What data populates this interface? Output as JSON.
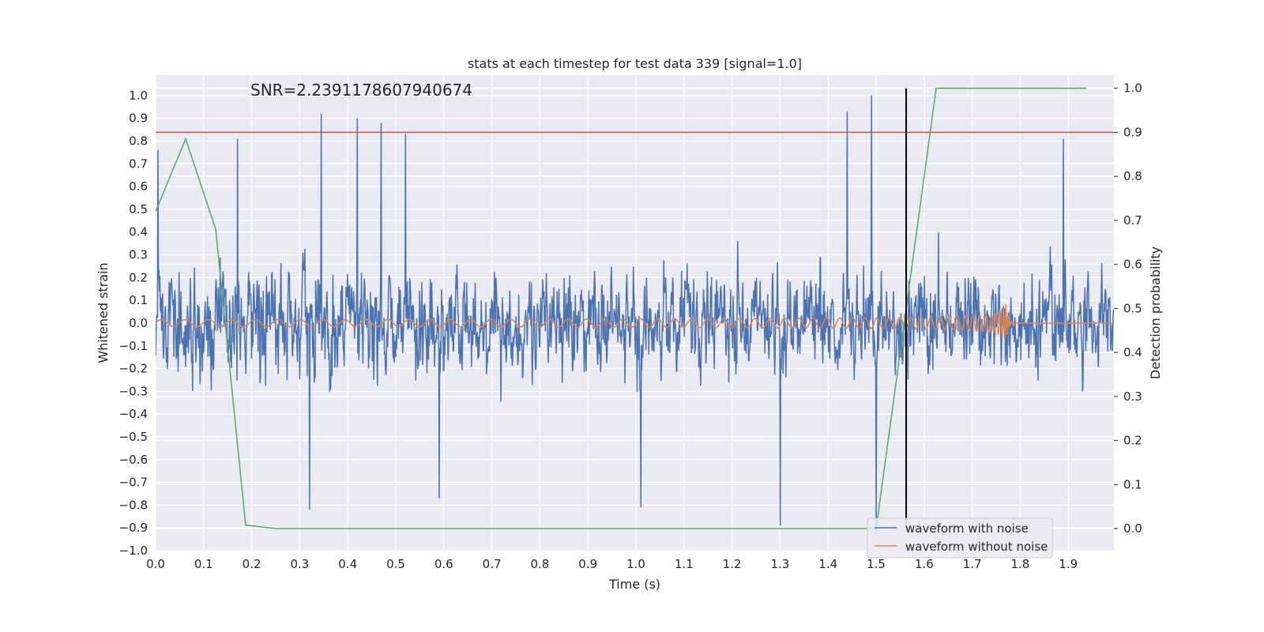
{
  "chart_data": {
    "type": "line",
    "title": "stats at each timestep for test data 339 [signal=1.0]",
    "xlabel": "Time (s)",
    "ylabel": "Whitened strain",
    "ylabel_right": "Detection probability",
    "annotation": "SNR=2.2391178607940674",
    "xlim": [
      0.0,
      1.995
    ],
    "ylim": [
      -1.0,
      1.09
    ],
    "ylim_right": [
      -0.05,
      1.03
    ],
    "x_ticks": [
      "0.0",
      "0.1",
      "0.2",
      "0.3",
      "0.4",
      "0.5",
      "0.6",
      "0.7",
      "0.8",
      "0.9",
      "1.0",
      "1.1",
      "1.2",
      "1.3",
      "1.4",
      "1.5",
      "1.6",
      "1.7",
      "1.8",
      "1.9"
    ],
    "y_ticks": [
      "1.0",
      "0.9",
      "0.8",
      "0.7",
      "0.6",
      "0.5",
      "0.4",
      "0.3",
      "0.2",
      "0.1",
      "0.0",
      "−0.1",
      "−0.2",
      "−0.3",
      "−0.4",
      "−0.5",
      "−0.6",
      "−0.7",
      "−0.8",
      "−0.9",
      "−1.0"
    ],
    "y_ticks_right": [
      "1.0",
      "0.9",
      "0.8",
      "0.7",
      "0.6",
      "0.5",
      "0.4",
      "0.3",
      "0.2",
      "0.1",
      "0.0"
    ],
    "grid": true,
    "legend_placement": "lower-right",
    "colors": {
      "noisy": "#4c72b0",
      "clean": "#dd8452",
      "probability": "#55a868",
      "threshold": "#c44e52",
      "marker": "#000000",
      "background": "#eaeaf2"
    },
    "series": [
      {
        "name": "waveform with noise",
        "axis": "left",
        "samples": 2048,
        "range": [
          -0.92,
          1.0
        ],
        "peaks": [
          {
            "x": 0.005,
            "y": 0.76
          },
          {
            "x": 0.17,
            "y": 0.81
          },
          {
            "x": 0.345,
            "y": 0.92
          },
          {
            "x": 0.42,
            "y": 0.9
          },
          {
            "x": 0.47,
            "y": 0.88
          },
          {
            "x": 0.52,
            "y": 0.83
          },
          {
            "x": 1.44,
            "y": 0.93
          },
          {
            "x": 1.49,
            "y": 1.0
          },
          {
            "x": 1.89,
            "y": 0.81
          }
        ],
        "troughs": [
          {
            "x": 0.32,
            "y": -0.82
          },
          {
            "x": 0.59,
            "y": -0.77
          },
          {
            "x": 1.01,
            "y": -0.81
          },
          {
            "x": 1.3,
            "y": -0.89
          },
          {
            "x": 1.5,
            "y": -0.92
          }
        ]
      },
      {
        "name": "waveform without noise",
        "axis": "left",
        "chirp_start": 0.0,
        "merger": 1.77,
        "peak_amplitude": 0.09,
        "start_amplitude": 0.015
      },
      {
        "name": "",
        "axis": "right",
        "x": [
          0.0,
          0.0625,
          0.125,
          0.1875,
          0.25,
          1.5,
          1.5625,
          1.625,
          1.9375
        ],
        "y": [
          0.72,
          0.885,
          0.68,
          0.008,
          0.0,
          0.0,
          0.5,
          1.0,
          1.0
        ]
      }
    ],
    "hlines": [
      {
        "axis": "right",
        "y": 0.9
      }
    ],
    "vlines": [
      {
        "x": 1.5625,
        "ymin": 0.0,
        "ymax": 1.0,
        "axis": "right"
      }
    ]
  }
}
